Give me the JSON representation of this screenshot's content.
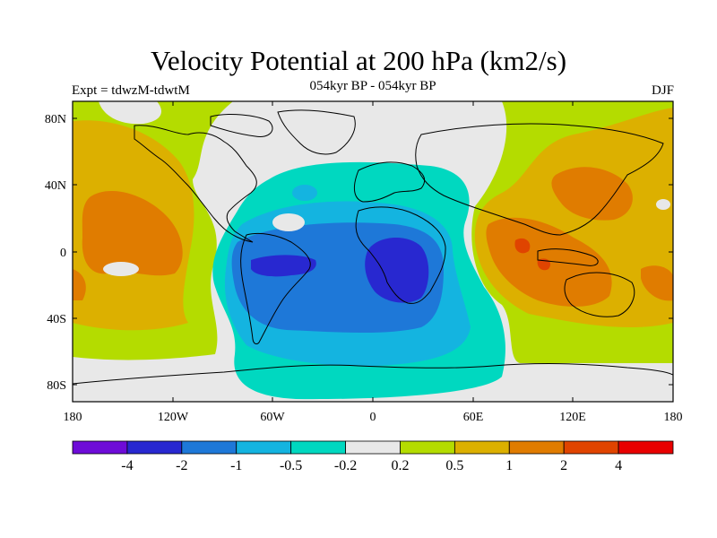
{
  "title": "Velocity Potential at 200 hPa (km2/s)",
  "subtitle": "054kyr BP - 054kyr BP",
  "experiment": "Expt = tdwzM-tdwtM",
  "season": "DJF",
  "map": {
    "projection": "cylindrical equidistant",
    "lon_range": [
      -180,
      180
    ],
    "lat_range": [
      -90,
      90
    ],
    "x_ticks": [
      "180",
      "120W",
      "60W",
      "0",
      "60E",
      "120E",
      "180"
    ],
    "y_ticks": [
      "80N",
      "40N",
      "0",
      "40S",
      "80S"
    ]
  },
  "colorbar": {
    "labels": [
      "-4",
      "-2",
      "-1",
      "-0.5",
      "-0.2",
      "0.2",
      "0.5",
      "1",
      "2",
      "4"
    ],
    "colors": [
      "#6e0cd8",
      "#2828d0",
      "#1e78d8",
      "#14b4e0",
      "#00d8c0",
      "#e8e8e8",
      "#b4dc00",
      "#dcb000",
      "#e07c00",
      "#e04400",
      "#e80000"
    ]
  }
}
